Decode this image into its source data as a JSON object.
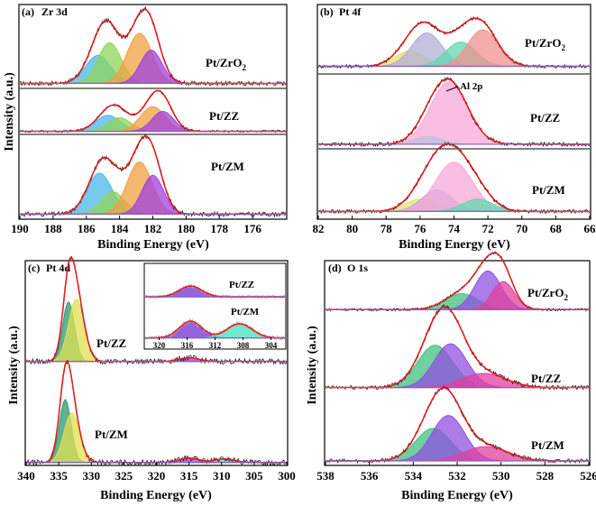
{
  "chart_data": [
    {
      "panel": "(a)",
      "type": "line",
      "title": "Zr 3d",
      "xlabel": "Binding Energy (eV)",
      "ylabel": "Intensity (a.u.)",
      "xlim": [
        190,
        174
      ],
      "xticks": [
        "190",
        "188",
        "186",
        "184",
        "182",
        "180",
        "178",
        "176"
      ],
      "series": [
        {
          "name": "Pt/ZrO2",
          "label_base": "Pt/ZrO",
          "label_sub": "2",
          "baseline": 0.05,
          "scale": 0.9,
          "peaks": [
            {
              "center": 185.3,
              "height": 0.38,
              "width": 0.75,
              "color": "#4ab8e8"
            },
            {
              "center": 184.6,
              "height": 0.55,
              "width": 0.7,
              "color": "#8fd45a"
            },
            {
              "center": 182.8,
              "height": 0.68,
              "width": 0.75,
              "color": "#f0a040"
            },
            {
              "center": 182.1,
              "height": 0.45,
              "width": 0.65,
              "color": "#a040e0"
            }
          ]
        },
        {
          "name": "Pt/ZZ",
          "label_base": "Pt/ZZ",
          "label_sub": "",
          "baseline": 0.05,
          "scale": 0.9,
          "peaks": [
            {
              "center": 184.7,
              "height": 0.4,
              "width": 0.75,
              "color": "#4ab8e8"
            },
            {
              "center": 184.0,
              "height": 0.34,
              "width": 0.7,
              "color": "#8fd45a"
            },
            {
              "center": 182.0,
              "height": 0.62,
              "width": 0.75,
              "color": "#f0a040"
            },
            {
              "center": 181.4,
              "height": 0.5,
              "width": 0.65,
              "color": "#a040e0"
            }
          ]
        },
        {
          "name": "Pt/ZM",
          "label_base": "Pt/ZM",
          "label_sub": "",
          "baseline": 0.05,
          "scale": 0.9,
          "peaks": [
            {
              "center": 185.2,
              "height": 0.55,
              "width": 0.75,
              "color": "#4ab8e8"
            },
            {
              "center": 184.4,
              "height": 0.3,
              "width": 0.7,
              "color": "#8fd45a"
            },
            {
              "center": 182.8,
              "height": 0.7,
              "width": 0.75,
              "color": "#f0a040"
            },
            {
              "center": 182.0,
              "height": 0.52,
              "width": 0.65,
              "color": "#a040e0"
            }
          ]
        }
      ]
    },
    {
      "panel": "(b)",
      "type": "line",
      "title": "Pt 4f",
      "xlabel": "Binding Energy (eV)",
      "ylabel": "",
      "xlim": [
        82,
        66
      ],
      "xticks": [
        "82",
        "80",
        "78",
        "76",
        "74",
        "72",
        "70",
        "68",
        "66"
      ],
      "annotation": "Al 2p",
      "series": [
        {
          "name": "Pt/ZrO2",
          "label_base": "Pt/ZrO",
          "label_sub": "2",
          "baseline": 0.1,
          "scale": 0.9,
          "peaks": [
            {
              "center": 76.6,
              "height": 0.25,
              "width": 0.9,
              "color": "#e8e070"
            },
            {
              "center": 75.6,
              "height": 0.55,
              "width": 0.9,
              "color": "#b0b0d8"
            },
            {
              "center": 73.6,
              "height": 0.4,
              "width": 0.9,
              "color": "#60d8b0"
            },
            {
              "center": 72.3,
              "height": 0.6,
              "width": 0.9,
              "color": "#f09090"
            }
          ]
        },
        {
          "name": "Pt/ZZ",
          "label_base": "Pt/ZZ",
          "label_sub": "",
          "baseline": 0.05,
          "scale": 0.9,
          "peaks": [
            {
              "center": 74.3,
              "height": 0.95,
              "width": 1.1,
              "color": "#f8a8d8"
            },
            {
              "center": 75.5,
              "height": 0.12,
              "width": 0.8,
              "color": "#c0c0e0"
            }
          ]
        },
        {
          "name": "Pt/ZM",
          "label_base": "Pt/ZM",
          "label_sub": "",
          "baseline": 0.1,
          "scale": 0.9,
          "peaks": [
            {
              "center": 76.0,
              "height": 0.2,
              "width": 0.9,
              "color": "#e8e070"
            },
            {
              "center": 75.0,
              "height": 0.35,
              "width": 0.9,
              "color": "#b0b0d8"
            },
            {
              "center": 74.0,
              "height": 0.8,
              "width": 1.1,
              "color": "#f8a8d8"
            },
            {
              "center": 72.6,
              "height": 0.2,
              "width": 0.9,
              "color": "#60d8b0"
            }
          ]
        }
      ]
    },
    {
      "panel": "(c)",
      "type": "line",
      "title": "Pt 4d",
      "xlabel": "Binding Energy (eV)",
      "ylabel": "Intensity (a.u.)",
      "xlim": [
        340,
        300
      ],
      "xticks": [
        "340",
        "335",
        "330",
        "325",
        "320",
        "315",
        "310",
        "305",
        "300"
      ],
      "series": [
        {
          "name": "Pt/ZZ",
          "label_base": "Pt/ZZ",
          "label_sub": "",
          "baseline": 0.02,
          "scale": 0.9,
          "peaks": [
            {
              "center": 333.5,
              "height": 0.65,
              "width": 0.9,
              "color": "#2a9a70"
            },
            {
              "center": 332.3,
              "height": 0.68,
              "width": 1.2,
              "color": "#e0e050"
            },
            {
              "center": 315.0,
              "height": 0.04,
              "width": 1.5,
              "color": "#a040e0"
            }
          ]
        },
        {
          "name": "Pt/ZM",
          "label_base": "Pt/ZM",
          "label_sub": "",
          "baseline": 0.02,
          "scale": 0.9,
          "peaks": [
            {
              "center": 334.0,
              "height": 0.7,
              "width": 0.9,
              "color": "#2a9a70"
            },
            {
              "center": 333.0,
              "height": 0.55,
              "width": 1.2,
              "color": "#e0e050"
            },
            {
              "center": 315.0,
              "height": 0.05,
              "width": 1.5,
              "color": "#a040e0"
            },
            {
              "center": 309.5,
              "height": 0.04,
              "width": 1.5,
              "color": "#40e0c0"
            }
          ]
        }
      ],
      "inset": {
        "xlim": [
          322,
          302
        ],
        "xticks": [
          "320",
          "316",
          "312",
          "308",
          "304"
        ],
        "series": [
          {
            "name": "Pt/ZZ",
            "baseline": 0.05,
            "scale": 0.9,
            "peaks": [
              {
                "center": 315.5,
                "height": 0.35,
                "width": 1.6,
                "color": "#7030d0"
              }
            ]
          },
          {
            "name": "Pt/ZM",
            "baseline": 0.05,
            "scale": 0.9,
            "peaks": [
              {
                "center": 315.5,
                "height": 0.45,
                "width": 1.6,
                "color": "#7030d0"
              },
              {
                "center": 308.5,
                "height": 0.38,
                "width": 1.8,
                "color": "#40e0c0"
              }
            ]
          }
        ]
      }
    },
    {
      "panel": "(d)",
      "type": "line",
      "title": "O 1s",
      "xlabel": "Binding Energy (eV)",
      "ylabel": "Intensity (a.u.)",
      "xlim": [
        538,
        526
      ],
      "xticks": [
        "538",
        "536",
        "534",
        "532",
        "530",
        "528",
        "526"
      ],
      "series": [
        {
          "name": "Pt/ZrO2",
          "label_base": "Pt/ZrO",
          "label_sub": "2",
          "baseline": 0.05,
          "scale": 0.9,
          "peaks": [
            {
              "center": 531.8,
              "height": 0.35,
              "width": 0.75,
              "color": "#40c080"
            },
            {
              "center": 530.6,
              "height": 0.85,
              "width": 0.6,
              "color": "#9050e0"
            },
            {
              "center": 529.9,
              "height": 0.62,
              "width": 0.5,
              "color": "#e040a0"
            }
          ]
        },
        {
          "name": "Pt/ZZ",
          "label_base": "Pt/ZZ",
          "label_sub": "",
          "baseline": 0.05,
          "scale": 0.9,
          "peaks": [
            {
              "center": 533.0,
              "height": 0.6,
              "width": 0.8,
              "color": "#40c080"
            },
            {
              "center": 532.3,
              "height": 0.62,
              "width": 0.75,
              "color": "#9050e0"
            },
            {
              "center": 530.8,
              "height": 0.2,
              "width": 1.0,
              "color": "#e040a0"
            }
          ]
        },
        {
          "name": "Pt/ZM",
          "label_base": "Pt/ZM",
          "label_sub": "",
          "baseline": 0.05,
          "scale": 0.9,
          "peaks": [
            {
              "center": 533.1,
              "height": 0.5,
              "width": 0.8,
              "color": "#40c080"
            },
            {
              "center": 532.4,
              "height": 0.7,
              "width": 0.75,
              "color": "#9050e0"
            },
            {
              "center": 530.7,
              "height": 0.22,
              "width": 1.0,
              "color": "#e040a0"
            }
          ]
        }
      ]
    }
  ]
}
